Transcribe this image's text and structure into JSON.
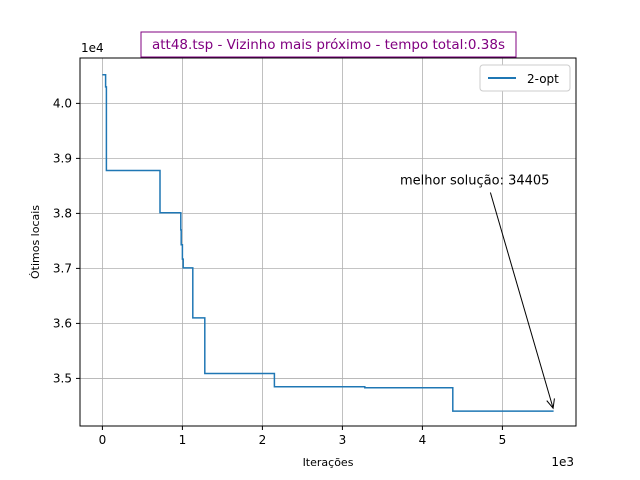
{
  "chart_data": {
    "type": "line",
    "title": "att48.tsp - Vizinho mais próximo - tempo total:0.38s",
    "title_color": "#800080",
    "xlabel": "Iterações",
    "ylabel": "Ótimos locais",
    "x_offset_label": "1e3",
    "y_offset_label": "1e4",
    "xlim": [
      -0.28,
      5.92
    ],
    "ylim": [
      3.4135,
      4.0825
    ],
    "xticks": [
      0,
      1,
      2,
      3,
      4,
      5
    ],
    "xtick_labels": [
      "0",
      "1",
      "2",
      "3",
      "4",
      "5"
    ],
    "yticks": [
      3.5,
      3.6,
      3.7,
      3.8,
      3.9,
      4.0
    ],
    "ytick_labels": [
      "3.5",
      "3.6",
      "3.7",
      "3.8",
      "3.9",
      "4.0"
    ],
    "grid": true,
    "legend_position": "top-right",
    "series": [
      {
        "name": "2-opt",
        "color": "#1f77b4",
        "x": [
          0.0,
          0.04,
          0.04,
          0.05,
          0.05,
          0.72,
          0.72,
          0.98,
          0.98,
          0.985,
          0.985,
          1.0,
          1.0,
          1.01,
          1.01,
          1.13,
          1.13,
          1.15,
          1.15,
          1.28,
          1.28,
          2.15,
          2.15,
          3.28,
          3.28,
          4.38,
          4.38,
          5.64
        ],
        "y": [
          4.052,
          4.052,
          4.03,
          4.03,
          3.878,
          3.878,
          3.801,
          3.801,
          3.77,
          3.77,
          3.743,
          3.743,
          3.717,
          3.717,
          3.701,
          3.701,
          3.61,
          3.61,
          3.61,
          3.61,
          3.509,
          3.509,
          3.485,
          3.485,
          3.483,
          3.483,
          3.4405,
          3.4405
        ]
      }
    ],
    "annotation": {
      "text": "melhor solução: 34405",
      "point": [
        5.64,
        3.4405
      ],
      "text_position": [
        3.72,
        3.86
      ]
    }
  }
}
